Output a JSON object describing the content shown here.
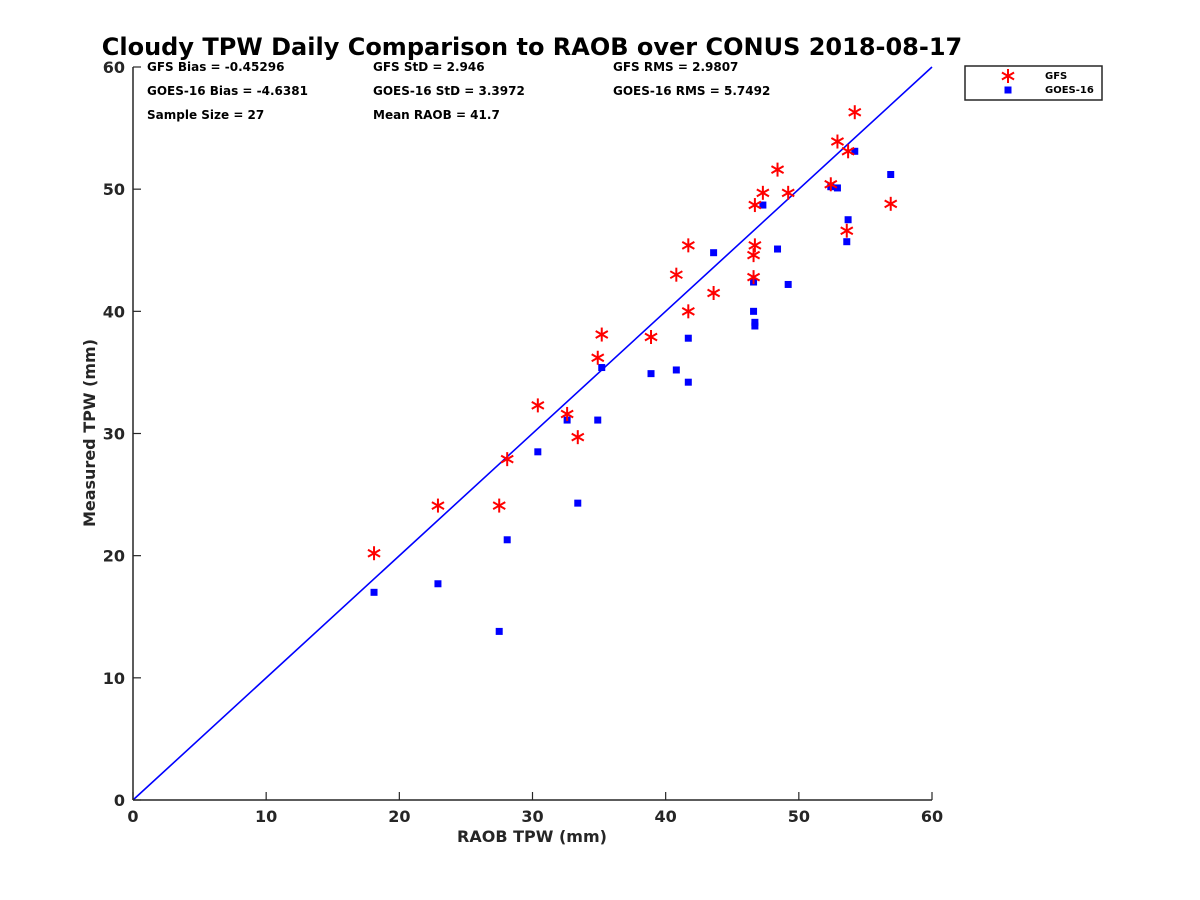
{
  "chart_data": {
    "type": "scatter",
    "title": "Cloudy TPW Daily Comparison to RAOB over CONUS 2018-08-17",
    "xlabel": "RAOB TPW (mm)",
    "ylabel": "Measured TPW (mm)",
    "xlim": [
      0,
      60
    ],
    "ylim": [
      0,
      60
    ],
    "xticks": [
      "0",
      "10",
      "20",
      "30",
      "40",
      "50",
      "60"
    ],
    "yticks": [
      "0",
      "10",
      "20",
      "30",
      "40",
      "50",
      "60"
    ],
    "grid": false,
    "legend_position": "outside top-right",
    "reference_line": {
      "x": [
        0,
        60
      ],
      "y": [
        0,
        60
      ],
      "color": "#0000ff"
    },
    "stats": [
      [
        "GFS Bias = -0.45296",
        "GFS StD = 2.946",
        "GFS RMS = 2.9807"
      ],
      [
        "GOES-16 Bias = -4.6381",
        "GOES-16 StD = 3.3972",
        "GOES-16 RMS = 5.7492"
      ],
      [
        "Sample Size = 27",
        "Mean RAOB = 41.7",
        ""
      ]
    ],
    "series": [
      {
        "name": "GFS",
        "marker": "asterisk",
        "color": "#ff0000",
        "points": [
          [
            18.1,
            20.2
          ],
          [
            22.9,
            24.1
          ],
          [
            27.5,
            24.1
          ],
          [
            28.1,
            27.9
          ],
          [
            30.4,
            32.3
          ],
          [
            32.6,
            31.6
          ],
          [
            33.4,
            29.7
          ],
          [
            34.9,
            36.2
          ],
          [
            35.2,
            38.1
          ],
          [
            38.9,
            37.9
          ],
          [
            40.8,
            43.0
          ],
          [
            41.7,
            45.4
          ],
          [
            41.7,
            40.0
          ],
          [
            43.6,
            41.5
          ],
          [
            46.6,
            42.8
          ],
          [
            46.6,
            44.6
          ],
          [
            46.7,
            45.4
          ],
          [
            46.7,
            48.7
          ],
          [
            47.3,
            49.7
          ],
          [
            48.4,
            51.6
          ],
          [
            49.2,
            49.7
          ],
          [
            52.4,
            50.4
          ],
          [
            52.9,
            53.9
          ],
          [
            53.7,
            53.1
          ],
          [
            54.2,
            56.3
          ],
          [
            53.6,
            46.6
          ],
          [
            56.9,
            48.8
          ]
        ]
      },
      {
        "name": "GOES-16",
        "marker": "square",
        "color": "#0000ff",
        "points": [
          [
            18.1,
            17.0
          ],
          [
            22.9,
            17.7
          ],
          [
            27.5,
            13.8
          ],
          [
            28.1,
            21.3
          ],
          [
            30.4,
            28.5
          ],
          [
            32.6,
            31.1
          ],
          [
            33.4,
            24.3
          ],
          [
            34.9,
            31.1
          ],
          [
            35.2,
            35.4
          ],
          [
            38.9,
            34.9
          ],
          [
            40.8,
            35.2
          ],
          [
            41.7,
            37.8
          ],
          [
            41.7,
            34.2
          ],
          [
            43.6,
            44.8
          ],
          [
            46.6,
            42.4
          ],
          [
            46.6,
            40.0
          ],
          [
            46.7,
            38.8
          ],
          [
            46.7,
            39.1
          ],
          [
            47.3,
            48.7
          ],
          [
            48.4,
            45.1
          ],
          [
            49.2,
            42.2
          ],
          [
            52.4,
            50.2
          ],
          [
            52.9,
            50.1
          ],
          [
            53.7,
            47.5
          ],
          [
            53.6,
            45.7
          ],
          [
            54.2,
            53.1
          ],
          [
            56.9,
            51.2
          ]
        ]
      }
    ]
  }
}
